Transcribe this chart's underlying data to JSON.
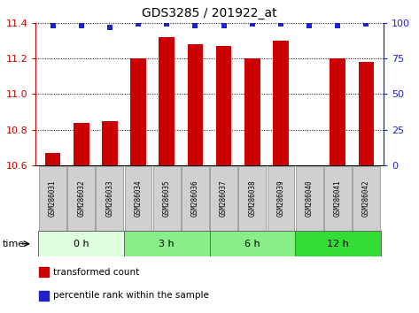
{
  "title": "GDS3285 / 201922_at",
  "samples": [
    "GSM286031",
    "GSM286032",
    "GSM286033",
    "GSM286034",
    "GSM286035",
    "GSM286036",
    "GSM286037",
    "GSM286038",
    "GSM286039",
    "GSM286040",
    "GSM286041",
    "GSM286042"
  ],
  "bar_values": [
    10.67,
    10.84,
    10.85,
    11.2,
    11.32,
    11.28,
    11.27,
    11.2,
    11.3,
    10.6,
    11.2,
    11.18
  ],
  "percentile_values": [
    98,
    98,
    97,
    99,
    99,
    98,
    98,
    99,
    99,
    98,
    98,
    99
  ],
  "bar_color": "#cc0000",
  "percentile_color": "#2222cc",
  "ylim_left": [
    10.6,
    11.4
  ],
  "ylim_right": [
    0,
    100
  ],
  "yticks_left": [
    10.6,
    10.8,
    11.0,
    11.2,
    11.4
  ],
  "yticks_right": [
    0,
    25,
    50,
    75,
    100
  ],
  "groups": [
    {
      "label": "0 h",
      "start": 0,
      "end": 3,
      "color": "#ddffdd"
    },
    {
      "label": "3 h",
      "start": 3,
      "end": 6,
      "color": "#88ee88"
    },
    {
      "label": "6 h",
      "start": 6,
      "end": 9,
      "color": "#88ee88"
    },
    {
      "label": "12 h",
      "start": 9,
      "end": 12,
      "color": "#33dd33"
    }
  ],
  "legend_bar_label": "transformed count",
  "legend_pct_label": "percentile rank within the sample",
  "time_label": "time",
  "bg_color": "#ffffff",
  "grid_color": "#000000",
  "tick_label_color_left": "#cc0000",
  "tick_label_color_right": "#2222cc",
  "sample_box_color": "#d0d0d0",
  "sample_box_edge": "#888888",
  "bar_width": 0.55,
  "title_fontsize": 10,
  "axis_fontsize": 8,
  "sample_fontsize": 5.5,
  "group_fontsize": 8,
  "legend_fontsize": 7.5
}
